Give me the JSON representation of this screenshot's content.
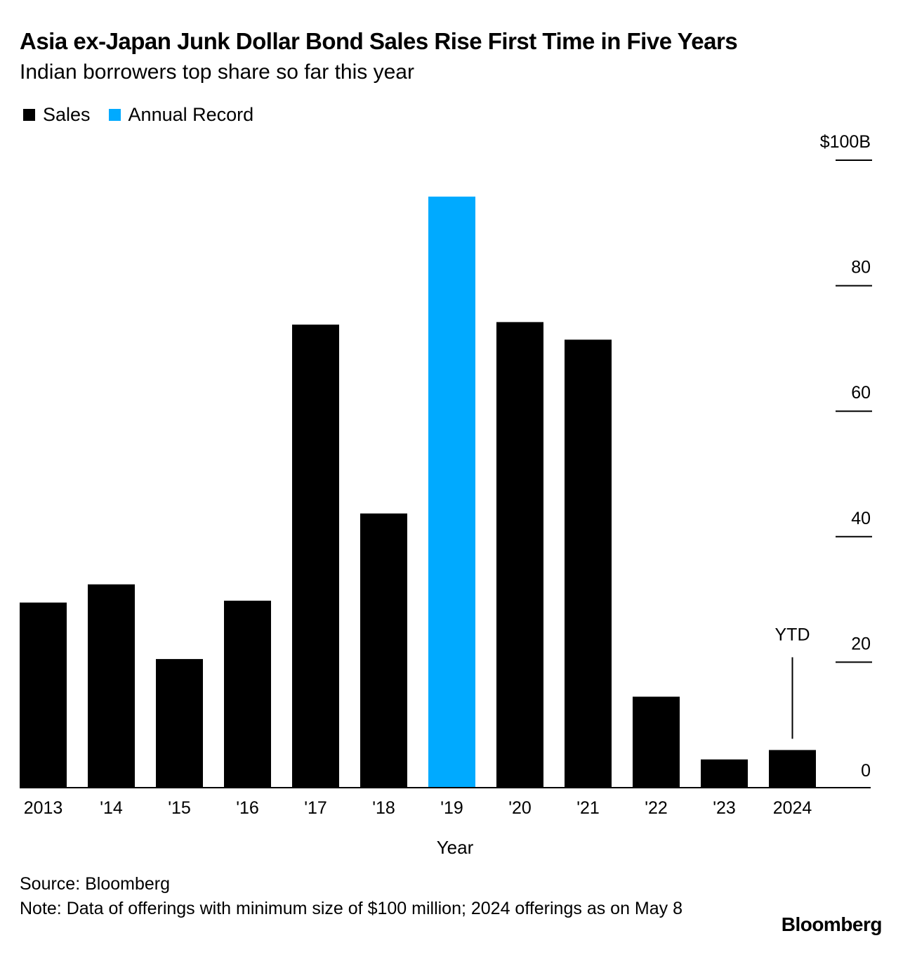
{
  "title": "Asia ex-Japan Junk Dollar Bond Sales Rise First Time in Five Years",
  "subtitle": "Indian borrowers top share so far this year",
  "legend": [
    {
      "label": "Sales",
      "color": "#000000"
    },
    {
      "label": "Annual Record",
      "color": "#00aaff"
    }
  ],
  "footer": {
    "source": "Source: Bloomberg",
    "note": "Note: Data of offerings with minimum size of $100 million; 2024 offerings as on May 8"
  },
  "brand": "Bloomberg",
  "chart_data": {
    "type": "bar",
    "categories": [
      "2013",
      "'14",
      "'15",
      "'16",
      "'17",
      "'18",
      "'19",
      "'20",
      "'21",
      "'22",
      "'23",
      "2024"
    ],
    "series": [
      {
        "name": "Sales",
        "values": [
          29.5,
          32.4,
          20.5,
          29.8,
          73.8,
          43.7,
          94.2,
          74.2,
          71.4,
          14.5,
          4.5,
          6.0
        ]
      }
    ],
    "highlight": {
      "category": "'19",
      "label": "Annual Record",
      "color": "#00aaff"
    },
    "bar_color": "#000000",
    "xlabel": "Year",
    "ylabel": "",
    "ylim": [
      0,
      100
    ],
    "yticks": [
      0,
      20,
      40,
      60,
      80,
      100
    ],
    "ytick_labels": [
      "0",
      "20",
      "40",
      "60",
      "80",
      "$100B"
    ],
    "y_axis_side": "right",
    "grid": false,
    "legend_position": "top-left",
    "annotations": [
      {
        "category": "2024",
        "text": "YTD"
      }
    ]
  }
}
